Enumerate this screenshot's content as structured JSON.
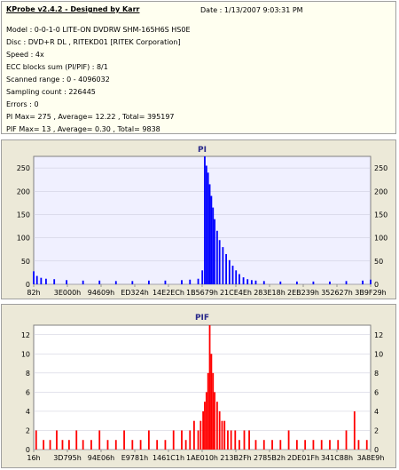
{
  "info": {
    "title": "KProbe v2.4.2 - Designed by Karr",
    "date": "Date : 1/13/2007 9:03:31 PM",
    "lines": [
      "Model : 0-0-1-0 LITE-ON DVDRW SHM-165H6S HS0E",
      "Disc : DVD+R DL , RITEKD01 [RITEK Corporation]",
      "Speed : 4x",
      "ECC blocks sum (PI/PIF) : 8/1",
      "Scanned range : 0 - 4096032",
      "Sampling count : 226445",
      "Errors : 0",
      "PI Max= 275 , Average= 12.22 , Total= 395197",
      "PIF Max= 13 , Average= 0.30 , Total= 9838"
    ]
  },
  "chart_data": [
    {
      "type": "bar",
      "title": "PI",
      "color": "#0000ff",
      "plot_background": "#f0f0ff",
      "ylim": [
        0,
        275
      ],
      "yticks": [
        0,
        50,
        100,
        150,
        200,
        250
      ],
      "xlim": [
        0,
        4096032
      ],
      "x_tick_labels": [
        "82h",
        "3E000h",
        "94609h",
        "ED324h",
        "14E2ECh",
        "1B5679h",
        "21CE4Eh",
        "283E18h",
        "2EB239h",
        "352627h",
        "3B9F29h"
      ],
      "x": [
        0,
        40000,
        90000,
        150000,
        250000,
        400000,
        600000,
        800000,
        1000000,
        1200000,
        1400000,
        1600000,
        1800000,
        1900000,
        2000000,
        2050000,
        2080000,
        2100000,
        2120000,
        2140000,
        2160000,
        2180000,
        2200000,
        2230000,
        2260000,
        2300000,
        2340000,
        2380000,
        2420000,
        2460000,
        2500000,
        2550000,
        2600000,
        2650000,
        2700000,
        2800000,
        3000000,
        3200000,
        3400000,
        3600000,
        3800000,
        4000000,
        4096032
      ],
      "values": [
        28,
        18,
        14,
        12,
        11,
        9,
        8,
        8,
        7,
        7,
        8,
        8,
        9,
        10,
        12,
        30,
        275,
        255,
        240,
        215,
        190,
        165,
        140,
        115,
        95,
        80,
        65,
        52,
        40,
        30,
        22,
        15,
        11,
        9,
        8,
        7,
        6,
        6,
        6,
        6,
        7,
        8,
        10
      ]
    },
    {
      "type": "bar",
      "title": "PIF",
      "color": "#ff0000",
      "plot_background": "#ffffff",
      "ylim": [
        0,
        13
      ],
      "yticks": [
        0,
        2,
        4,
        6,
        8,
        10,
        12
      ],
      "xlim": [
        0,
        4096032
      ],
      "x_tick_labels": [
        "16h",
        "3D795h",
        "94E06h",
        "E9781h",
        "1461C1h",
        "1AE010h",
        "213B2Fh",
        "2785B2h",
        "2DE01Fh",
        "341C88h",
        "3A8E9h"
      ],
      "x": [
        30000,
        120000,
        200000,
        280000,
        350000,
        430000,
        520000,
        600000,
        700000,
        800000,
        900000,
        1000000,
        1100000,
        1200000,
        1300000,
        1400000,
        1500000,
        1600000,
        1700000,
        1800000,
        1850000,
        1900000,
        1950000,
        2000000,
        2030000,
        2060000,
        2080000,
        2100000,
        2120000,
        2140000,
        2160000,
        2180000,
        2200000,
        2230000,
        2260000,
        2290000,
        2320000,
        2360000,
        2400000,
        2450000,
        2500000,
        2560000,
        2620000,
        2700000,
        2800000,
        2900000,
        3000000,
        3100000,
        3200000,
        3300000,
        3400000,
        3500000,
        3600000,
        3700000,
        3800000,
        3900000,
        3950000,
        4050000
      ],
      "values": [
        2,
        1,
        1,
        2,
        1,
        1,
        2,
        1,
        1,
        2,
        1,
        1,
        2,
        1,
        1,
        2,
        1,
        1,
        2,
        2,
        1,
        2,
        3,
        2,
        3,
        4,
        5,
        6,
        8,
        13,
        10,
        8,
        6,
        5,
        4,
        3,
        3,
        2,
        2,
        2,
        1,
        2,
        2,
        1,
        1,
        1,
        1,
        2,
        1,
        1,
        1,
        1,
        1,
        1,
        2,
        4,
        1,
        1
      ]
    }
  ]
}
